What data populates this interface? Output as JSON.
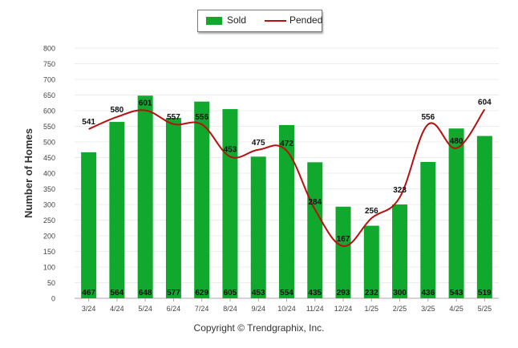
{
  "legend": {
    "sold_label": "Sold",
    "pended_label": "Pended"
  },
  "footer": {
    "copyright": "Copyright © Trendgraphix, Inc."
  },
  "colors": {
    "sold": "#11a82e",
    "pended": "#b80f0f",
    "grid": "#ececec",
    "axis": "#aaaaaa"
  },
  "chart_data": {
    "type": "bar",
    "title": "",
    "xlabel": "",
    "ylabel": "Number of Homes",
    "ylim": [
      0,
      800
    ],
    "yticks": [
      0,
      50,
      100,
      150,
      200,
      250,
      300,
      350,
      400,
      450,
      500,
      550,
      600,
      650,
      700,
      750,
      800
    ],
    "grid": true,
    "legend_position": "top-center",
    "categories": [
      "3/24",
      "4/24",
      "5/24",
      "6/24",
      "7/24",
      "8/24",
      "9/24",
      "10/24",
      "11/24",
      "12/24",
      "1/25",
      "2/25",
      "3/25",
      "4/25",
      "5/25"
    ],
    "series": [
      {
        "name": "Sold",
        "type": "bar",
        "values": [
          467,
          564,
          648,
          577,
          629,
          605,
          453,
          554,
          435,
          293,
          232,
          300,
          436,
          543,
          519
        ]
      },
      {
        "name": "Pended",
        "type": "line",
        "values": [
          541,
          580,
          601,
          557,
          556,
          453,
          475,
          472,
          284,
          167,
          256,
          323,
          556,
          480,
          604
        ]
      }
    ]
  }
}
